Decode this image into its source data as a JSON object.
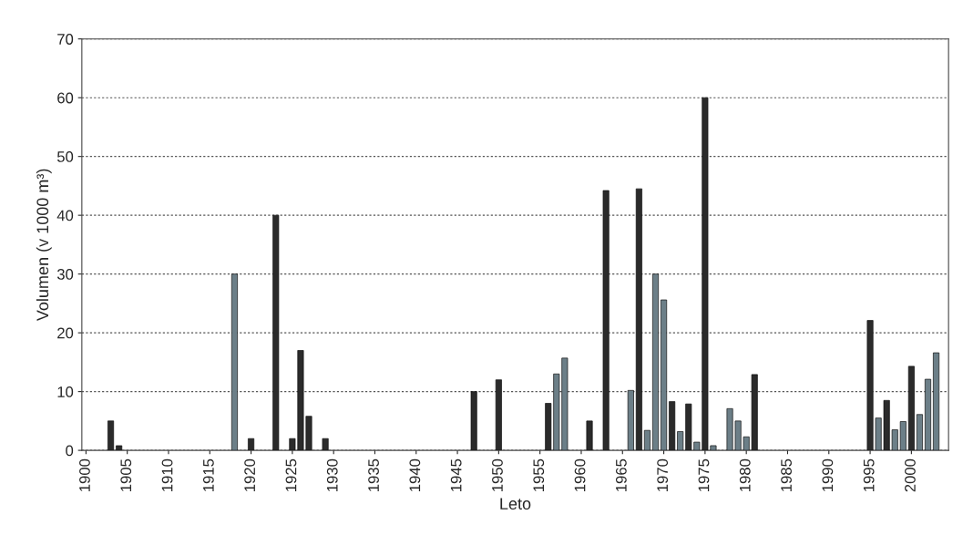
{
  "chart_data": {
    "type": "bar",
    "xlabel": "Leto",
    "ylabel": "Volumen (v 1000 m³)",
    "x": [
      1903,
      1904,
      1918,
      1920,
      1923,
      1925,
      1926,
      1927,
      1929,
      1947,
      1950,
      1956,
      1957,
      1958,
      1961,
      1963,
      1966,
      1967,
      1968,
      1969,
      1970,
      1971,
      1972,
      1973,
      1974,
      1975,
      1976,
      1978,
      1979,
      1980,
      1981,
      1995,
      1996,
      1997,
      1998,
      1999,
      2000,
      2001,
      2002,
      2003
    ],
    "values": [
      5,
      0.8,
      30,
      2,
      40,
      2,
      17,
      5.8,
      2,
      10,
      12,
      8,
      13,
      15.7,
      5,
      44.2,
      10.2,
      44.5,
      3.4,
      30,
      25.6,
      8.3,
      3.2,
      7.9,
      1.4,
      60,
      0.8,
      7.1,
      5,
      2.3,
      12.9,
      22.1,
      5.5,
      8.5,
      3.5,
      4.9,
      14.3,
      6.1,
      12.1,
      16.6
    ],
    "colors": [
      "#2b2b2b",
      "#2b2b2b",
      "#6c7f88",
      "#2b2b2b",
      "#2b2b2b",
      "#2b2b2b",
      "#2b2b2b",
      "#2b2b2b",
      "#2b2b2b",
      "#2b2b2b",
      "#2b2b2b",
      "#2b2b2b",
      "#6c7f88",
      "#6c7f88",
      "#2b2b2b",
      "#2b2b2b",
      "#6c7f88",
      "#2b2b2b",
      "#6c7f88",
      "#6c7f88",
      "#6c7f88",
      "#2b2b2b",
      "#6c7f88",
      "#2b2b2b",
      "#6c7f88",
      "#2b2b2b",
      "#6c7f88",
      "#6c7f88",
      "#6c7f88",
      "#6c7f88",
      "#2b2b2b",
      "#2b2b2b",
      "#6c7f88",
      "#2b2b2b",
      "#6c7f88",
      "#6c7f88",
      "#2b2b2b",
      "#6c7f88",
      "#6c7f88",
      "#6c7f88"
    ],
    "xlim": [
      1899.5,
      2004.5
    ],
    "xticks": [
      1900,
      1905,
      1910,
      1915,
      1920,
      1925,
      1930,
      1935,
      1940,
      1945,
      1950,
      1955,
      1960,
      1965,
      1970,
      1975,
      1980,
      1985,
      1990,
      1995,
      2000
    ],
    "ylim": [
      0,
      70
    ],
    "yticks": [
      0,
      10,
      20,
      30,
      40,
      50,
      60,
      70
    ],
    "grid": "y"
  }
}
